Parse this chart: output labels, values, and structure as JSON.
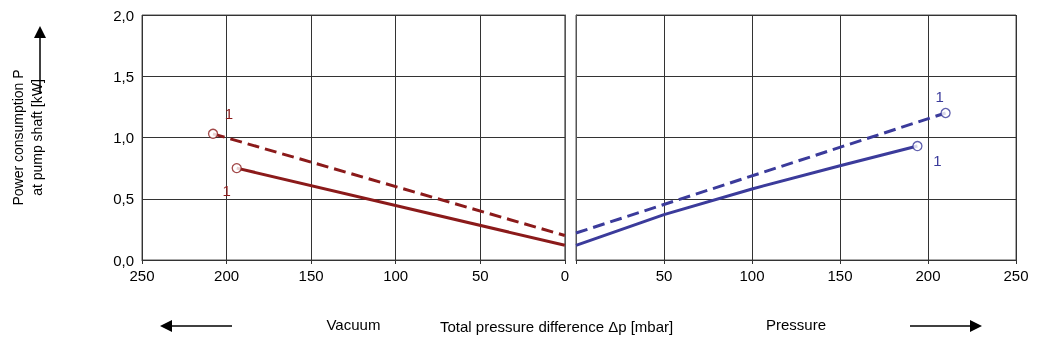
{
  "chart_data": [
    {
      "type": "line",
      "ylabel": "Power consumption P\nat pump shaft [kW]",
      "xlabel": "Vacuum",
      "xlim": [
        250,
        0
      ],
      "xticks": [
        250,
        200,
        150,
        100,
        50,
        0
      ],
      "ylim": [
        0,
        2
      ],
      "yticks": [
        {
          "value": 0,
          "label": "0,0"
        },
        {
          "value": 0.5,
          "label": "0,5"
        },
        {
          "value": 1,
          "label": "1,0"
        },
        {
          "value": 1.5,
          "label": "1,5"
        },
        {
          "value": 2,
          "label": "2,0"
        }
      ],
      "grid": true,
      "series": [
        {
          "color": "#8b1a1a",
          "line_style": "dashed",
          "x": [
            208,
            0
          ],
          "values": [
            1.03,
            0.2
          ]
        },
        {
          "color": "#8b1a1a",
          "line_style": "solid",
          "x": [
            194,
            0
          ],
          "values": [
            0.75,
            0.12
          ]
        },
        {
          "type": "scatter",
          "marker": "circle",
          "color": "#8b1a1a",
          "x": [
            208,
            194
          ],
          "values": [
            1.03,
            0.75
          ]
        }
      ],
      "annotations": [
        {
          "text": "1",
          "x": 208,
          "y": 1.03
        },
        {
          "text": "1",
          "x": 194,
          "y": 0.75
        },
        "Total pressure difference Δp [mbar]"
      ]
    },
    {
      "type": "line",
      "xlabel": "Pressure",
      "tick_labels": "x",
      "xlim": [
        0,
        250
      ],
      "xticks": [
        {
          "value": 0,
          "label": null
        },
        50,
        100,
        150,
        200,
        250
      ],
      "ylim": [
        0,
        2
      ],
      "yticks": [
        0,
        0.5,
        1,
        1.5,
        2
      ],
      "grid": true,
      "series": [
        {
          "color": "#3b3b9b",
          "line_style": "dashed",
          "x": [
            0,
            210
          ],
          "values": [
            0.22,
            1.2
          ]
        },
        {
          "color": "#3b3b9b",
          "line_style": "solid",
          "x": [
            0,
            50,
            100,
            150,
            194
          ],
          "values": [
            0.12,
            0.37,
            0.58,
            0.77,
            0.93
          ]
        },
        {
          "type": "scatter",
          "marker": "circle",
          "color": "#3b3b9b",
          "x": [
            210,
            194
          ],
          "values": [
            1.2,
            0.93
          ]
        }
      ],
      "annotations": [
        {
          "text": "1",
          "x": 210,
          "y": 1.2
        },
        {
          "text": "1",
          "x": 194,
          "y": 0.93
        }
      ]
    }
  ]
}
